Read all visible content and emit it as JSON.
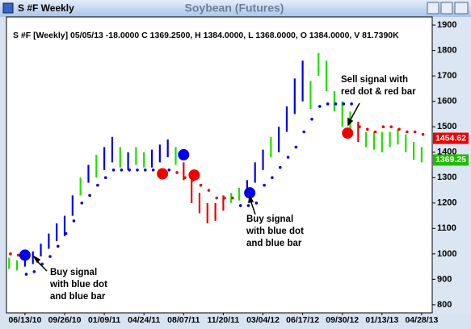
{
  "window_title": "S #F Weekly",
  "chart_data": {
    "type": "ohlc",
    "title": "Soybean (Futures)",
    "info": "S #F [Weekly] 05/05/13 -18.0000 C 1369.2500, H 1384.0000, L 1368.0000, O 1384.0000, V 81.7390K",
    "xlim": [
      -7,
      154
    ],
    "xticks": [
      {
        "value": 0,
        "label": "06/13/10"
      },
      {
        "value": 15,
        "label": "09/26/10"
      },
      {
        "value": 30,
        "label": "01/09/11"
      },
      {
        "value": 45,
        "label": "04/24/11"
      },
      {
        "value": 60,
        "label": "08/07/11"
      },
      {
        "value": 75,
        "label": "11/20/11"
      },
      {
        "value": 90,
        "label": "03/04/12"
      },
      {
        "value": 105,
        "label": "06/17/12"
      },
      {
        "value": 120,
        "label": "09/30/12"
      },
      {
        "value": 135,
        "label": "01/13/13"
      },
      {
        "value": 150,
        "label": "04/28/13"
      }
    ],
    "ylim": [
      768,
      1932
    ],
    "yticks": [
      800,
      900,
      1000,
      1100,
      1200,
      1300,
      1400,
      1500,
      1600,
      1700,
      1800,
      1900
    ],
    "x": [
      -6,
      -3,
      0,
      3,
      6,
      9,
      12,
      15,
      18,
      21,
      24,
      27,
      30,
      33,
      36,
      39,
      42,
      45,
      48,
      51,
      54,
      57,
      60,
      63,
      66,
      69,
      72,
      75,
      78,
      81,
      84,
      87,
      90,
      93,
      96,
      99,
      102,
      105,
      108,
      111,
      114,
      117,
      120,
      123,
      126,
      129,
      132,
      135,
      138,
      141,
      144,
      147,
      150
    ],
    "high": [
      985,
      975,
      1000,
      1010,
      1040,
      1080,
      1120,
      1150,
      1230,
      1300,
      1350,
      1390,
      1420,
      1460,
      1420,
      1400,
      1420,
      1400,
      1410,
      1430,
      1450,
      1420,
      1360,
      1300,
      1240,
      1200,
      1200,
      1230,
      1240,
      1260,
      1290,
      1360,
      1410,
      1460,
      1500,
      1580,
      1690,
      1760,
      1680,
      1790,
      1760,
      1640,
      1600,
      1560,
      1520,
      1480,
      1480,
      1480,
      1480,
      1490,
      1470,
      1440,
      1420
    ],
    "low": [
      940,
      935,
      950,
      960,
      990,
      1020,
      1050,
      1070,
      1150,
      1230,
      1280,
      1300,
      1330,
      1360,
      1340,
      1330,
      1350,
      1340,
      1340,
      1360,
      1380,
      1350,
      1290,
      1200,
      1160,
      1120,
      1130,
      1170,
      1200,
      1210,
      1230,
      1280,
      1330,
      1380,
      1400,
      1480,
      1550,
      1600,
      1570,
      1700,
      1640,
      1560,
      1500,
      1480,
      1440,
      1420,
      1410,
      1400,
      1420,
      1430,
      1400,
      1370,
      1360
    ],
    "bar_colors": [
      "#22dd00",
      "#22dd00",
      "#0000dd",
      "#0000dd",
      "#0000dd",
      "#0000dd",
      "#0000dd",
      "#0000dd",
      "#0000dd",
      "#22dd00",
      "#0000dd",
      "#22dd00",
      "#0000dd",
      "#0000dd",
      "#22dd00",
      "#0000dd",
      "#22dd00",
      "#22dd00",
      "#0000dd",
      "#0000dd",
      "#0000dd",
      "#22dd00",
      "#ee0000",
      "#ee0000",
      "#ee0000",
      "#ee0000",
      "#ee0000",
      "#ee0000",
      "#22dd00",
      "#22dd00",
      "#0000dd",
      "#0000dd",
      "#0000dd",
      "#22dd00",
      "#0000dd",
      "#0000dd",
      "#0000dd",
      "#0000dd",
      "#22dd00",
      "#22dd00",
      "#22dd00",
      "#22dd00",
      "#22dd00",
      "#22dd00",
      "#ee0000",
      "#22dd00",
      "#22dd00",
      "#22dd00",
      "#22dd00",
      "#22dd00",
      "#22dd00",
      "#22dd00",
      "#22dd00"
    ],
    "stops": [
      1000,
      995,
      920,
      930,
      960,
      990,
      1030,
      1080,
      1130,
      1200,
      1230,
      1270,
      1300,
      1330,
      1330,
      1330,
      1330,
      1330,
      1330,
      1330,
      1330,
      1320,
      1300,
      1290,
      1270,
      1250,
      1220,
      1220,
      1220,
      1190,
      1190,
      1200,
      1270,
      1300,
      1340,
      1380,
      1420,
      1480,
      1530,
      1580,
      1590,
      1590,
      1590,
      1590,
      1500,
      1490,
      1480,
      1500,
      1500,
      1490,
      1480,
      1480,
      1470
    ],
    "stop_colors": [
      "#ee0000",
      "#ee0000",
      "#0000dd",
      "#0000dd",
      "#0000dd",
      "#0000dd",
      "#0000dd",
      "#0000dd",
      "#0000dd",
      "#0000dd",
      "#0000dd",
      "#0000dd",
      "#0000dd",
      "#0000dd",
      "#0000dd",
      "#0000dd",
      "#0000dd",
      "#0000dd",
      "#0000dd",
      "#0000dd",
      "#0000dd",
      "#ee0000",
      "#ee0000",
      "#ee0000",
      "#ee0000",
      "#ee0000",
      "#ee0000",
      "#ee0000",
      "#ee0000",
      "#0000dd",
      "#0000dd",
      "#0000dd",
      "#0000dd",
      "#0000dd",
      "#0000dd",
      "#0000dd",
      "#0000dd",
      "#0000dd",
      "#0000dd",
      "#0000dd",
      "#0000dd",
      "#0000dd",
      "#0000dd",
      "#0000dd",
      "#ee0000",
      "#ee0000",
      "#ee0000",
      "#ee0000",
      "#ee0000",
      "#ee0000",
      "#ee0000",
      "#ee0000",
      "#ee0000"
    ],
    "signals": [
      {
        "x": 0,
        "value": 995,
        "color": "#0000ee"
      },
      {
        "x": 52,
        "value": 1315,
        "color": "#ee0000"
      },
      {
        "x": 60,
        "value": 1390,
        "color": "#0000ee"
      },
      {
        "x": 64,
        "value": 1310,
        "color": "#ee0000"
      },
      {
        "x": 85,
        "value": 1240,
        "color": "#0000ee"
      },
      {
        "x": 122,
        "value": 1475,
        "color": "#ee0000"
      }
    ],
    "price_labels": [
      {
        "value": 1454.62,
        "color": "#ee0000"
      },
      {
        "value": 1369.25,
        "color": "#22bb00"
      }
    ],
    "annotations": [
      {
        "lines": [
          "Buy signal",
          "with blue dot",
          "and blue bar"
        ]
      },
      {
        "lines": [
          "Buy signal",
          "with blue dot",
          "and blue bar"
        ]
      },
      {
        "lines": [
          "Sell signal with",
          "red dot & red bar"
        ]
      }
    ]
  }
}
